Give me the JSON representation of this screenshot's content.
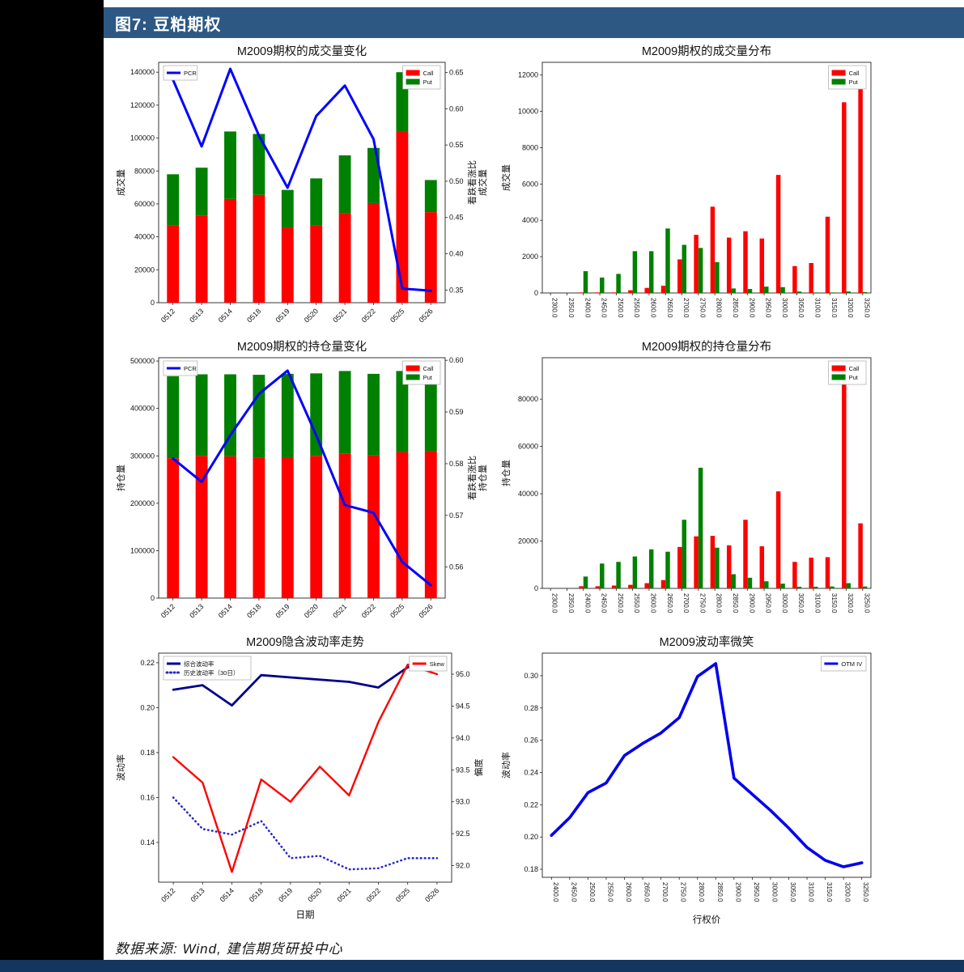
{
  "page": {
    "header_title": "图7: 豆粕期权",
    "footer_source": "数据来源: Wind, 建信期货研投中心",
    "colors": {
      "header_bg": "#2d5884",
      "bottom_bar": "#14365d",
      "call_red": "#ff0000",
      "put_green": "#008000",
      "pcr_blue": "#0000ff",
      "composite_navy": "#00008b",
      "hist_blue_dotted": "#2929cc",
      "skew_red": "#ff0000",
      "smile_blue": "#0000ee"
    }
  },
  "chart_data": [
    {
      "id": "volume-change",
      "type": "bar",
      "bar_mode": "stacked",
      "title": "M2009期权的成交量变化",
      "categories": [
        "0512",
        "0513",
        "0514",
        "0518",
        "0519",
        "0520",
        "0521",
        "0522",
        "0525",
        "0526"
      ],
      "x_rotation": 45,
      "margins": {
        "l": 58,
        "r": 64,
        "t": 24,
        "b": 44
      },
      "left_axis": {
        "label": "成交量",
        "min": 0,
        "max": 146000,
        "ticks": [
          0,
          20000,
          40000,
          60000,
          80000,
          100000,
          120000,
          140000
        ]
      },
      "right_axis": {
        "label": "看跌看涨比\n成交量",
        "min": 0.3325,
        "max": 0.664,
        "ticks": [
          0.35,
          0.4,
          0.45,
          0.5,
          0.55,
          0.6,
          0.65
        ],
        "decimals": 2
      },
      "series": [
        {
          "name": "Call",
          "type": "bar",
          "color": "#ff0000",
          "values": [
            47000,
            53000,
            63000,
            65500,
            45500,
            47000,
            54500,
            60500,
            104000,
            55000
          ]
        },
        {
          "name": "Put",
          "type": "bar",
          "color": "#008000",
          "values": [
            31000,
            29000,
            41000,
            37000,
            23000,
            28500,
            35000,
            33500,
            36000,
            19500
          ]
        },
        {
          "name": "PCR",
          "type": "line",
          "axis": "right",
          "color": "#0000ff",
          "width": 3,
          "values": [
            0.64,
            0.548,
            0.655,
            0.563,
            0.491,
            0.59,
            0.632,
            0.558,
            0.352,
            0.349
          ]
        }
      ],
      "legends": [
        {
          "pos": "tl",
          "items": [
            {
              "label": "PCR",
              "color": "#0000ff",
              "shape": "line"
            }
          ]
        },
        {
          "pos": "tr",
          "items": [
            {
              "label": "Call",
              "color": "#ff0000",
              "shape": "swatch"
            },
            {
              "label": "Put",
              "color": "#008000",
              "shape": "swatch"
            }
          ]
        }
      ]
    },
    {
      "id": "volume-distribution",
      "type": "bar",
      "bar_mode": "grouped",
      "title": "M2009期权的成交量分布",
      "categories": [
        "2300.0",
        "2350.0",
        "2400.0",
        "2450.0",
        "2500.0",
        "2550.0",
        "2600.0",
        "2650.0",
        "2700.0",
        "2750.0",
        "2800.0",
        "2850.0",
        "2900.0",
        "2950.0",
        "3000.0",
        "3050.0",
        "3100.0",
        "3150.0",
        "3200.0",
        "3250.0"
      ],
      "x_rotation": 90,
      "margins": {
        "l": 56,
        "r": 14,
        "t": 24,
        "b": 56
      },
      "left_axis": {
        "label": "成交量",
        "min": 0,
        "max": 12700,
        "ticks": [
          0,
          2000,
          4000,
          6000,
          8000,
          10000,
          12000
        ]
      },
      "series": [
        {
          "name": "Call",
          "type": "bar",
          "color": "#ff0000",
          "values": [
            0,
            0,
            30,
            30,
            30,
            150,
            280,
            400,
            1850,
            3200,
            4750,
            3050,
            3400,
            3000,
            6500,
            1480,
            1650,
            4200,
            10500,
            11900
          ]
        },
        {
          "name": "Put",
          "type": "bar",
          "color": "#008000",
          "values": [
            0,
            0,
            1200,
            850,
            1050,
            2300,
            2300,
            3550,
            2650,
            2480,
            1700,
            250,
            220,
            350,
            320,
            80,
            30,
            30,
            80,
            50
          ]
        }
      ],
      "legends": [
        {
          "pos": "tr",
          "items": [
            {
              "label": "Call",
              "color": "#ff0000",
              "shape": "swatch"
            },
            {
              "label": "Put",
              "color": "#008000",
              "shape": "swatch"
            }
          ]
        }
      ]
    },
    {
      "id": "oi-change",
      "type": "bar",
      "bar_mode": "stacked",
      "title": "M2009期权的持仓量变化",
      "categories": [
        "0512",
        "0513",
        "0514",
        "0518",
        "0519",
        "0520",
        "0521",
        "0522",
        "0525",
        "0526"
      ],
      "x_rotation": 45,
      "margins": {
        "l": 58,
        "r": 64,
        "t": 24,
        "b": 44
      },
      "left_axis": {
        "label": "持仓量",
        "min": 0,
        "max": 507000,
        "ticks": [
          0,
          100000,
          200000,
          300000,
          400000,
          500000
        ]
      },
      "right_axis": {
        "label": "看跌看涨比\n持仓量",
        "min": 0.554,
        "max": 0.6005,
        "ticks": [
          0.56,
          0.57,
          0.58,
          0.59,
          0.6
        ],
        "decimals": 2
      },
      "series": [
        {
          "name": "Call",
          "type": "bar",
          "color": "#ff0000",
          "values": [
            295000,
            300000,
            299000,
            296000,
            297000,
            300000,
            305000,
            301000,
            308000,
            310000
          ]
        },
        {
          "name": "Put",
          "type": "bar",
          "color": "#008000",
          "values": [
            173000,
            172000,
            173000,
            175000,
            176000,
            174000,
            174000,
            172000,
            171000,
            171000
          ]
        },
        {
          "name": "PCR",
          "type": "line",
          "axis": "right",
          "color": "#0000ff",
          "width": 3,
          "values": [
            0.581,
            0.5765,
            0.5855,
            0.5935,
            0.598,
            0.5855,
            0.572,
            0.5705,
            0.561,
            0.5565
          ]
        }
      ],
      "legends": [
        {
          "pos": "tl",
          "items": [
            {
              "label": "PCR",
              "color": "#0000ff",
              "shape": "line"
            }
          ]
        },
        {
          "pos": "tr",
          "items": [
            {
              "label": "Call",
              "color": "#ff0000",
              "shape": "swatch"
            },
            {
              "label": "Put",
              "color": "#008000",
              "shape": "swatch"
            }
          ]
        }
      ]
    },
    {
      "id": "oi-distribution",
      "type": "bar",
      "bar_mode": "grouped",
      "title": "M2009期权的持仓量分布",
      "categories": [
        "2300.0",
        "2350.0",
        "2400.0",
        "2450.0",
        "2500.0",
        "2550.0",
        "2600.0",
        "2650.0",
        "2700.0",
        "2750.0",
        "2800.0",
        "2850.0",
        "2900.0",
        "2950.0",
        "3000.0",
        "3050.0",
        "3100.0",
        "3150.0",
        "3200.0",
        "3250.0"
      ],
      "x_rotation": 90,
      "margins": {
        "l": 56,
        "r": 14,
        "t": 24,
        "b": 56
      },
      "left_axis": {
        "label": "持仓量",
        "min": 0,
        "max": 97500,
        "ticks": [
          0,
          20000,
          40000,
          60000,
          80000
        ]
      },
      "series": [
        {
          "name": "Call",
          "type": "bar",
          "color": "#ff0000",
          "values": [
            0,
            0,
            900,
            900,
            1200,
            1500,
            2200,
            3500,
            17500,
            22000,
            22200,
            18200,
            29000,
            17800,
            41000,
            11200,
            13000,
            13200,
            94000,
            27500
          ]
        },
        {
          "name": "Put",
          "type": "bar",
          "color": "#008000",
          "values": [
            0,
            0,
            5000,
            10500,
            11200,
            13500,
            16500,
            15500,
            29000,
            51000,
            17200,
            6000,
            4500,
            3000,
            2000,
            700,
            700,
            800,
            2200,
            800
          ]
        }
      ],
      "legends": [
        {
          "pos": "tr",
          "items": [
            {
              "label": "Call",
              "color": "#ff0000",
              "shape": "swatch"
            },
            {
              "label": "Put",
              "color": "#008000",
              "shape": "swatch"
            }
          ]
        }
      ]
    },
    {
      "id": "iv-trend",
      "type": "line",
      "title": "M2009隐含波动率走势",
      "categories": [
        "0512",
        "0513",
        "0514",
        "0518",
        "0519",
        "0520",
        "0521",
        "0522",
        "0525",
        "0526"
      ],
      "x_rotation": 45,
      "xlabel": "日期",
      "margins": {
        "l": 58,
        "r": 56,
        "t": 24,
        "b": 58
      },
      "left_axis": {
        "label": "波动率",
        "min": 0.1223,
        "max": 0.2243,
        "ticks": [
          0.14,
          0.16,
          0.18,
          0.2,
          0.22
        ],
        "decimals": 2
      },
      "right_axis": {
        "label": "偏度",
        "min": 91.74,
        "max": 95.33,
        "ticks": [
          92.0,
          92.5,
          93.0,
          93.5,
          94.0,
          94.5,
          95.0
        ],
        "decimals": 1
      },
      "series": [
        {
          "name": "综合波动率",
          "type": "line",
          "axis": "left",
          "color": "#00008b",
          "width": 2.8,
          "values": [
            0.208,
            0.21,
            0.201,
            0.2145,
            0.2135,
            0.2125,
            0.2115,
            0.209,
            0.218,
            0.2205
          ]
        },
        {
          "name": "历史波动率（30日）",
          "type": "line",
          "axis": "left",
          "color": "#2929cc",
          "width": 2.6,
          "dash": "0.5 4.5",
          "values": [
            0.16,
            0.146,
            0.1435,
            0.1495,
            0.133,
            0.134,
            0.128,
            0.1285,
            0.133,
            0.133
          ]
        },
        {
          "name": "Skew",
          "type": "line",
          "axis": "right",
          "color": "#ff0000",
          "width": 2.4,
          "values": [
            93.7,
            93.3,
            91.9,
            93.35,
            93.0,
            93.55,
            93.1,
            94.25,
            95.15,
            95.0
          ]
        }
      ],
      "legends": [
        {
          "pos": "tl",
          "items": [
            {
              "label": "综合波动率",
              "color": "#00008b",
              "shape": "line"
            },
            {
              "label": "历史波动率（30日）",
              "color": "#2929cc",
              "shape": "line",
              "dash": true
            }
          ]
        },
        {
          "pos": "tr",
          "items": [
            {
              "label": "Skew",
              "color": "#ff0000",
              "shape": "line"
            }
          ]
        }
      ]
    },
    {
      "id": "vol-smile",
      "type": "line",
      "title": "M2009波动率微笑",
      "categories": [
        "2400.0",
        "2450.0",
        "2500.0",
        "2550.0",
        "2600.0",
        "2650.0",
        "2700.0",
        "2750.0",
        "2800.0",
        "2850.0",
        "2900.0",
        "2950.0",
        "3000.0",
        "3050.0",
        "3100.0",
        "3150.0",
        "3200.0",
        "3250.0"
      ],
      "x_rotation": 90,
      "xlabel": "行权价",
      "margins": {
        "l": 56,
        "r": 14,
        "t": 24,
        "b": 64
      },
      "left_axis": {
        "label": "波动率",
        "min": 0.175,
        "max": 0.314,
        "ticks": [
          0.18,
          0.2,
          0.22,
          0.24,
          0.26,
          0.28,
          0.3
        ],
        "decimals": 2
      },
      "series": [
        {
          "name": "OTM IV",
          "type": "line",
          "axis": "left",
          "color": "#0000ee",
          "width": 3.6,
          "values": [
            0.201,
            0.212,
            0.2275,
            0.2335,
            0.2505,
            0.258,
            0.2645,
            0.274,
            0.2995,
            0.3075,
            0.2365,
            0.2265,
            0.2165,
            0.2055,
            0.1935,
            0.1855,
            0.1815,
            0.184
          ]
        }
      ],
      "legends": [
        {
          "pos": "tr",
          "items": [
            {
              "label": "OTM IV",
              "color": "#0000ee",
              "shape": "line"
            }
          ]
        }
      ]
    }
  ]
}
